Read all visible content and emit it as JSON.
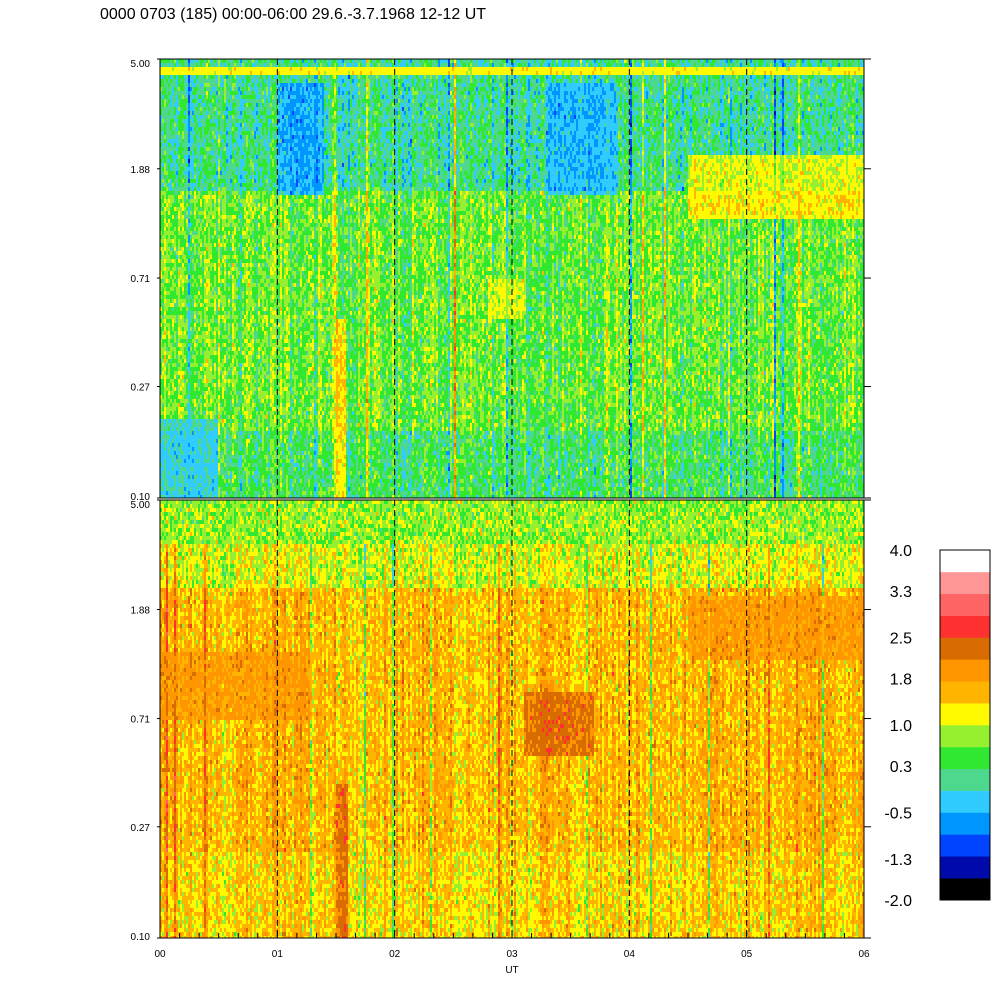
{
  "title": "0000 0703 (185) 00:00-06:00 29.6.-3.7.1968  12-12 UT",
  "chart_data": [
    {
      "type": "heatmap",
      "panel": "upper",
      "xlabel": "",
      "y_scale": "log",
      "ylim": [
        0.1,
        5.0
      ],
      "y_ticks": [
        "5.00",
        "1.88",
        "0.71",
        "0.27",
        "0.10"
      ],
      "x_ticks": [],
      "xlim": [
        "00",
        "06"
      ],
      "vlines": [
        "01",
        "02",
        "03",
        "04",
        "05"
      ],
      "dominant_value": 0.6,
      "features": [
        {
          "x_range": [
            1.0,
            1.4
          ],
          "y_range": [
            1.5,
            4.0
          ],
          "value": -0.9
        },
        {
          "x_range": [
            3.3,
            3.9
          ],
          "y_range": [
            1.5,
            4.0
          ],
          "value": -0.7
        },
        {
          "x_range": [
            4.5,
            6.0
          ],
          "y_range": [
            1.2,
            2.1
          ],
          "value": 1.6
        },
        {
          "x_range": [
            2.8,
            3.1
          ],
          "y_range": [
            0.5,
            0.7
          ],
          "value": 1.3
        },
        {
          "x_range": [
            1.5,
            1.58
          ],
          "y_range": [
            0.1,
            0.5
          ],
          "value": 1.9
        },
        {
          "x_range": [
            0.0,
            0.5
          ],
          "y_range": [
            0.1,
            0.2
          ],
          "value": -0.5
        }
      ],
      "bright_band_y": 4.5
    },
    {
      "type": "heatmap",
      "panel": "lower",
      "xlabel": "UT",
      "y_scale": "log",
      "ylim": [
        0.1,
        5.0
      ],
      "y_ticks": [
        "5.00",
        "1.88",
        "0.71",
        "0.27",
        "0.10"
      ],
      "x_ticks": [
        "00",
        "01",
        "02",
        "03",
        "04",
        "05",
        "06"
      ],
      "xlim": [
        "00",
        "06"
      ],
      "vlines": [
        "01",
        "02",
        "03",
        "04",
        "05"
      ],
      "dominant_value": 1.6,
      "features": [
        {
          "x_range": [
            0.0,
            1.3
          ],
          "y_range": [
            0.7,
            1.3
          ],
          "value": 2.0
        },
        {
          "x_range": [
            3.1,
            3.7
          ],
          "y_range": [
            0.5,
            0.9
          ],
          "value": 2.6
        },
        {
          "x_range": [
            4.5,
            6.0
          ],
          "y_range": [
            1.2,
            2.1
          ],
          "value": 2.0
        },
        {
          "x_range": [
            1.5,
            1.6
          ],
          "y_range": [
            0.1,
            0.4
          ],
          "value": 2.7
        }
      ],
      "top_band_value": 0.5
    }
  ],
  "colorbar": {
    "labels": [
      "4.0",
      "3.3",
      "2.5",
      "1.8",
      "1.0",
      "0.3",
      "-0.5",
      "-1.3",
      "-2.0"
    ],
    "colors": [
      "#000000",
      "#000aaa",
      "#0044ff",
      "#0096ff",
      "#30ccff",
      "#4dd88e",
      "#30e830",
      "#96f030",
      "#fffa00",
      "#ffb400",
      "#ff9600",
      "#d86c00",
      "#ff3030",
      "#ff6464",
      "#ff9696",
      "#ffffff"
    ],
    "min": -2.0,
    "max": 4.0
  }
}
